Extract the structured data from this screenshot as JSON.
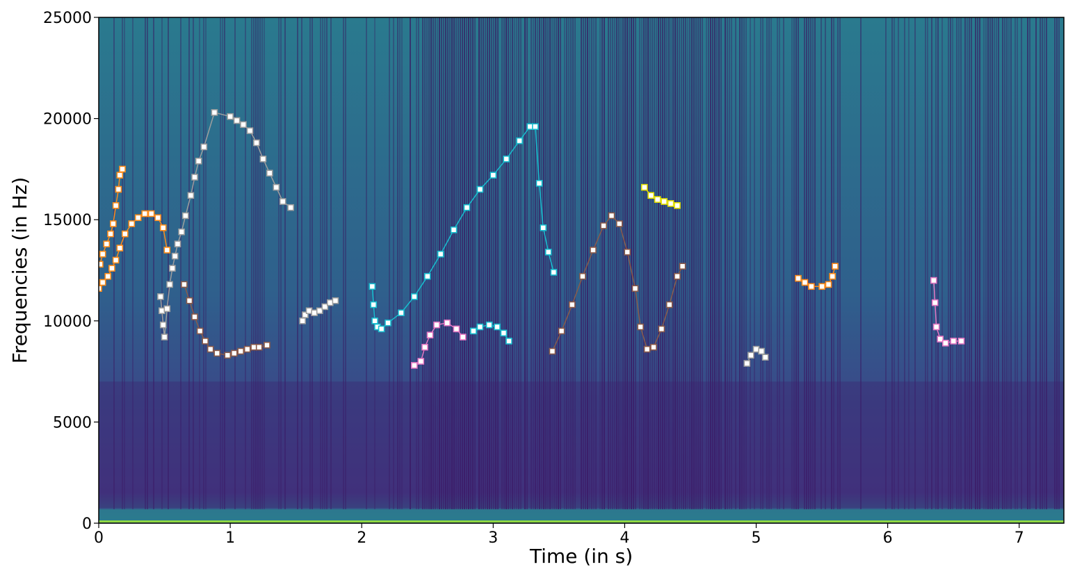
{
  "chart_data": {
    "type": "scatter",
    "background": "spectrogram",
    "xlabel": "Time (in s)",
    "ylabel": "Frequencies (in Hz)",
    "xlim": [
      0,
      7.34
    ],
    "ylim": [
      0,
      25000
    ],
    "xticks": [
      0,
      1,
      2,
      3,
      4,
      5,
      6,
      7
    ],
    "yticks": [
      0,
      5000,
      10000,
      15000,
      20000,
      25000
    ],
    "grid": false,
    "legend": "none",
    "series": [
      {
        "color": "#ff8c1a",
        "points": [
          [
            0.0,
            11600
          ],
          [
            0.03,
            11900
          ],
          [
            0.07,
            12200
          ],
          [
            0.1,
            12600
          ],
          [
            0.13,
            13000
          ],
          [
            0.16,
            13600
          ],
          [
            0.2,
            14300
          ],
          [
            0.25,
            14800
          ],
          [
            0.3,
            15100
          ],
          [
            0.35,
            15300
          ],
          [
            0.4,
            15300
          ],
          [
            0.45,
            15100
          ],
          [
            0.49,
            14600
          ],
          [
            0.52,
            13500
          ]
        ]
      },
      {
        "color": "#ff8c1a",
        "points": [
          [
            0.01,
            12800
          ],
          [
            0.03,
            13300
          ],
          [
            0.06,
            13800
          ],
          [
            0.09,
            14300
          ],
          [
            0.11,
            14800
          ],
          [
            0.13,
            15700
          ],
          [
            0.15,
            16500
          ],
          [
            0.16,
            17200
          ],
          [
            0.18,
            17500
          ]
        ]
      },
      {
        "color": "#9e9e9e",
        "points": [
          [
            0.47,
            11200
          ],
          [
            0.48,
            10500
          ],
          [
            0.49,
            9800
          ],
          [
            0.5,
            9200
          ],
          [
            0.52,
            10600
          ],
          [
            0.54,
            11800
          ],
          [
            0.56,
            12600
          ],
          [
            0.58,
            13200
          ],
          [
            0.6,
            13800
          ],
          [
            0.63,
            14400
          ],
          [
            0.66,
            15200
          ],
          [
            0.7,
            16200
          ],
          [
            0.73,
            17100
          ],
          [
            0.76,
            17900
          ],
          [
            0.8,
            18600
          ],
          [
            0.88,
            20300
          ],
          [
            1.0,
            20100
          ],
          [
            1.05,
            19900
          ],
          [
            1.1,
            19700
          ],
          [
            1.15,
            19400
          ],
          [
            1.2,
            18800
          ],
          [
            1.25,
            18000
          ],
          [
            1.3,
            17300
          ],
          [
            1.35,
            16600
          ],
          [
            1.4,
            15900
          ],
          [
            1.46,
            15600
          ]
        ]
      },
      {
        "color": "#8a5a4a",
        "points": [
          [
            0.65,
            11800
          ],
          [
            0.69,
            11000
          ],
          [
            0.73,
            10200
          ],
          [
            0.77,
            9500
          ],
          [
            0.81,
            9000
          ],
          [
            0.85,
            8600
          ],
          [
            0.9,
            8400
          ],
          [
            0.98,
            8300
          ],
          [
            1.03,
            8400
          ],
          [
            1.08,
            8500
          ],
          [
            1.13,
            8600
          ],
          [
            1.18,
            8700
          ],
          [
            1.22,
            8700
          ],
          [
            1.28,
            8800
          ]
        ]
      },
      {
        "color": "#9e9e9e",
        "points": [
          [
            1.55,
            10000
          ],
          [
            1.57,
            10300
          ],
          [
            1.6,
            10500
          ],
          [
            1.64,
            10400
          ],
          [
            1.68,
            10500
          ],
          [
            1.72,
            10700
          ],
          [
            1.76,
            10900
          ],
          [
            1.8,
            11000
          ]
        ]
      },
      {
        "color": "#17becf",
        "points": [
          [
            2.08,
            11700
          ],
          [
            2.09,
            10800
          ],
          [
            2.1,
            10000
          ],
          [
            2.12,
            9700
          ],
          [
            2.15,
            9600
          ],
          [
            2.2,
            9900
          ],
          [
            2.3,
            10400
          ],
          [
            2.4,
            11200
          ],
          [
            2.5,
            12200
          ],
          [
            2.6,
            13300
          ],
          [
            2.7,
            14500
          ],
          [
            2.8,
            15600
          ],
          [
            2.9,
            16500
          ],
          [
            3.0,
            17200
          ],
          [
            3.1,
            18000
          ],
          [
            3.2,
            18900
          ],
          [
            3.28,
            19600
          ],
          [
            3.32,
            19600
          ],
          [
            3.35,
            16800
          ],
          [
            3.38,
            14600
          ],
          [
            3.42,
            13400
          ],
          [
            3.46,
            12400
          ]
        ]
      },
      {
        "color": "#e377c2",
        "points": [
          [
            2.4,
            7800
          ],
          [
            2.45,
            8000
          ],
          [
            2.48,
            8700
          ],
          [
            2.52,
            9300
          ],
          [
            2.57,
            9800
          ],
          [
            2.65,
            9900
          ],
          [
            2.72,
            9600
          ],
          [
            2.77,
            9200
          ]
        ]
      },
      {
        "color": "#17becf",
        "points": [
          [
            2.85,
            9500
          ],
          [
            2.9,
            9700
          ],
          [
            2.97,
            9800
          ],
          [
            3.03,
            9700
          ],
          [
            3.08,
            9400
          ],
          [
            3.12,
            9000
          ]
        ]
      },
      {
        "color": "#8a5a4a",
        "points": [
          [
            3.45,
            8500
          ],
          [
            3.52,
            9500
          ],
          [
            3.6,
            10800
          ],
          [
            3.68,
            12200
          ],
          [
            3.76,
            13500
          ],
          [
            3.84,
            14700
          ],
          [
            3.9,
            15200
          ],
          [
            3.96,
            14800
          ],
          [
            4.02,
            13400
          ],
          [
            4.08,
            11600
          ],
          [
            4.12,
            9700
          ],
          [
            4.17,
            8600
          ],
          [
            4.22,
            8700
          ],
          [
            4.28,
            9600
          ],
          [
            4.34,
            10800
          ],
          [
            4.4,
            12200
          ],
          [
            4.44,
            12700
          ]
        ]
      },
      {
        "color": "#e6e200",
        "points": [
          [
            4.15,
            16600
          ],
          [
            4.2,
            16200
          ],
          [
            4.25,
            16000
          ],
          [
            4.3,
            15900
          ],
          [
            4.35,
            15800
          ],
          [
            4.4,
            15700
          ]
        ]
      },
      {
        "color": "#9e9e9e",
        "points": [
          [
            4.93,
            7900
          ],
          [
            4.96,
            8300
          ],
          [
            5.0,
            8600
          ],
          [
            5.04,
            8500
          ],
          [
            5.07,
            8200
          ]
        ]
      },
      {
        "color": "#ff8c1a",
        "points": [
          [
            5.32,
            12100
          ],
          [
            5.37,
            11900
          ],
          [
            5.42,
            11700
          ],
          [
            5.5,
            11700
          ],
          [
            5.55,
            11800
          ],
          [
            5.58,
            12200
          ],
          [
            5.6,
            12700
          ]
        ]
      },
      {
        "color": "#e377c2",
        "points": [
          [
            6.35,
            12000
          ],
          [
            6.36,
            10900
          ],
          [
            6.37,
            9700
          ],
          [
            6.4,
            9100
          ],
          [
            6.44,
            8900
          ],
          [
            6.5,
            9000
          ],
          [
            6.56,
            9000
          ]
        ]
      }
    ]
  }
}
